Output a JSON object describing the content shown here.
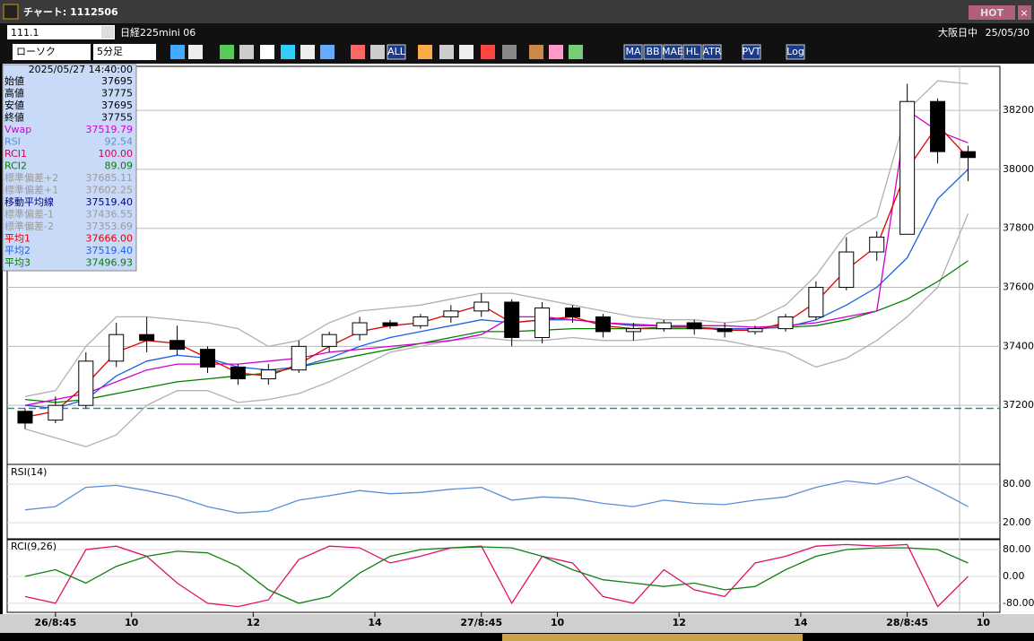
{
  "window": {
    "title": "チャート: 1112506",
    "hot": "HOT"
  },
  "toolbar": {
    "symbol_code": "111.1",
    "symbol_name": "日経225mini 06",
    "session": "大阪日中",
    "date": "25/05/30",
    "chart_type": "ローソク",
    "interval": "5分足",
    "buttons": [
      "ALL",
      "MA",
      "BB",
      "MAE",
      "HL",
      "ATR",
      "PVT",
      "Log"
    ]
  },
  "info_panel": {
    "datetime": "2025/05/27  14:40:00",
    "rows": [
      {
        "label": "始値",
        "value": "37695",
        "color": "#000000"
      },
      {
        "label": "高値",
        "value": "37775",
        "color": "#000000"
      },
      {
        "label": "安値",
        "value": "37695",
        "color": "#000000"
      },
      {
        "label": "終値",
        "value": "37755",
        "color": "#000000"
      },
      {
        "label": "Vwap",
        "value": "37519.79",
        "color": "#d000d0"
      },
      {
        "label": "RSI",
        "value": "92.54",
        "color": "#5b8fd5"
      },
      {
        "label": "RCI1",
        "value": "100.00",
        "color": "#d0005a"
      },
      {
        "label": "RCI2",
        "value": "89.09",
        "color": "#008000"
      },
      {
        "label": "標準偏差+2",
        "value": "37685.11",
        "color": "#9a9a9a"
      },
      {
        "label": "標準偏差+1",
        "value": "37602.25",
        "color": "#9a9a9a"
      },
      {
        "label": "移動平均線",
        "value": "37519.40",
        "color": "#000080"
      },
      {
        "label": "標準偏差-1",
        "value": "37436.55",
        "color": "#9a9a9a"
      },
      {
        "label": "標準偏差-2",
        "value": "37353.69",
        "color": "#9a9a9a"
      },
      {
        "label": "平均1",
        "value": "37666.00",
        "color": "#e00000"
      },
      {
        "label": "平均2",
        "value": "37519.40",
        "color": "#2060e0"
      },
      {
        "label": "平均3",
        "value": "37496.93",
        "color": "#008000"
      }
    ]
  },
  "chart_data": [
    {
      "type": "candlestick",
      "x": [
        0,
        1,
        2,
        3,
        4,
        5,
        6,
        7,
        8,
        9,
        10,
        11,
        12,
        13,
        14,
        15,
        16,
        17,
        18,
        19,
        20,
        21,
        22,
        23,
        24,
        25,
        26,
        27,
        28,
        29,
        30,
        31
      ],
      "xlim": [
        -0.5,
        31.9
      ],
      "xticks": [
        {
          "value": 1,
          "label": "26/8:45"
        },
        {
          "value": 3.5,
          "label": "10"
        },
        {
          "value": 7.5,
          "label": "12"
        },
        {
          "value": 11.5,
          "label": "14"
        },
        {
          "value": 15,
          "label": "27/8:45"
        },
        {
          "value": 17.5,
          "label": "10"
        },
        {
          "value": 21.5,
          "label": "12"
        },
        {
          "value": 25.5,
          "label": "14"
        },
        {
          "value": 29,
          "label": "28/8:45"
        },
        {
          "value": 31.5,
          "label": "10"
        }
      ],
      "open": [
        37180,
        37150,
        37200,
        37350,
        37440,
        37420,
        37390,
        37330,
        37290,
        37320,
        37400,
        37440,
        37480,
        37470,
        37500,
        37520,
        37550,
        37430,
        37530,
        37500,
        37450,
        37460,
        37480,
        37460,
        37450,
        37460,
        37500,
        37600,
        37720,
        37780,
        38230,
        38060
      ],
      "high": [
        37190,
        37230,
        37380,
        37480,
        37500,
        37470,
        37400,
        37340,
        37340,
        37420,
        37450,
        37500,
        37490,
        37510,
        37540,
        37580,
        37560,
        37550,
        37540,
        37510,
        37480,
        37490,
        37490,
        37480,
        37470,
        37510,
        37620,
        37770,
        37790,
        38290,
        38240,
        38080
      ],
      "low": [
        37120,
        37140,
        37190,
        37330,
        37380,
        37370,
        37310,
        37270,
        37270,
        37310,
        37380,
        37420,
        37460,
        37460,
        37480,
        37500,
        37400,
        37410,
        37480,
        37430,
        37420,
        37450,
        37440,
        37430,
        37440,
        37450,
        37490,
        37590,
        37690,
        37780,
        38020,
        37960
      ],
      "close": [
        37140,
        37200,
        37350,
        37440,
        37420,
        37390,
        37330,
        37290,
        37320,
        37400,
        37440,
        37480,
        37470,
        37500,
        37520,
        37550,
        37430,
        37530,
        37500,
        37450,
        37460,
        37480,
        37460,
        37450,
        37460,
        37500,
        37600,
        37720,
        37770,
        38230,
        38060,
        38040
      ],
      "lines": [
        {
          "name": "標準偏差+2",
          "color": "#b0b0b0",
          "values": [
            37230,
            37250,
            37400,
            37500,
            37500,
            37490,
            37480,
            37460,
            37400,
            37420,
            37480,
            37520,
            37530,
            37540,
            37560,
            37580,
            37580,
            37560,
            37540,
            37520,
            37500,
            37490,
            37490,
            37480,
            37490,
            37540,
            37640,
            37780,
            37840,
            38200,
            38300,
            38290
          ]
        },
        {
          "name": "標準偏差-2",
          "color": "#b0b0b0",
          "values": [
            37120,
            37090,
            37060,
            37100,
            37200,
            37250,
            37250,
            37210,
            37220,
            37240,
            37280,
            37330,
            37380,
            37400,
            37420,
            37430,
            37420,
            37420,
            37430,
            37420,
            37420,
            37430,
            37430,
            37420,
            37400,
            37380,
            37330,
            37360,
            37420,
            37500,
            37600,
            37850
          ]
        },
        {
          "name": "平均3",
          "color": "#008000",
          "values": [
            37220,
            37210,
            37220,
            37240,
            37260,
            37280,
            37290,
            37300,
            37310,
            37330,
            37350,
            37370,
            37390,
            37410,
            37430,
            37450,
            37450,
            37455,
            37460,
            37460,
            37460,
            37460,
            37460,
            37460,
            37460,
            37465,
            37470,
            37490,
            37520,
            37560,
            37620,
            37690
          ]
        },
        {
          "name": "平均2",
          "color": "#2060e0",
          "values": [
            37200,
            37190,
            37220,
            37300,
            37350,
            37370,
            37360,
            37330,
            37320,
            37330,
            37360,
            37400,
            37430,
            37450,
            37470,
            37490,
            37480,
            37490,
            37490,
            37480,
            37470,
            37470,
            37465,
            37460,
            37460,
            37465,
            37490,
            37540,
            37600,
            37700,
            37900,
            38000
          ]
        },
        {
          "name": "Vwap",
          "color": "#d000d0",
          "values": [
            37200,
            37220,
            37240,
            37280,
            37320,
            37340,
            37340,
            37340,
            37350,
            37360,
            37380,
            37390,
            37400,
            37410,
            37420,
            37440,
            37500,
            37500,
            37490,
            37480,
            37475,
            37470,
            37470,
            37470,
            37465,
            37470,
            37480,
            37500,
            37520,
            38200,
            38130,
            38090
          ]
        },
        {
          "name": "平均1",
          "color": "#e00000",
          "values": [
            37160,
            37180,
            37270,
            37380,
            37420,
            37410,
            37360,
            37310,
            37300,
            37340,
            37400,
            37450,
            37470,
            37480,
            37510,
            37540,
            37480,
            37490,
            37500,
            37470,
            37460,
            37465,
            37465,
            37455,
            37455,
            37480,
            37550,
            37660,
            37740,
            38000,
            38150,
            38040
          ]
        }
      ],
      "hline": 37190,
      "hline_color": "#2a8a9a",
      "ylim": [
        37000,
        38340
      ],
      "yticks": [
        37200,
        37400,
        37600,
        37800,
        38000,
        38200
      ]
    },
    {
      "type": "line",
      "label": "RSI(14)",
      "ylim": [
        -6.5,
        106.5
      ],
      "yticks": [
        {
          "value": 80,
          "label": "80.00"
        },
        {
          "value": 20,
          "label": "20.00"
        }
      ],
      "series": [
        {
          "name": "RSI",
          "color": "#5b8fd5",
          "values": [
            40,
            45,
            75,
            78,
            70,
            60,
            45,
            35,
            38,
            55,
            62,
            70,
            65,
            67,
            72,
            75,
            55,
            60,
            58,
            50,
            45,
            55,
            50,
            48,
            55,
            60,
            75,
            85,
            80,
            92,
            70,
            45
          ]
        }
      ]
    },
    {
      "type": "line",
      "label": "RCI(9,26)",
      "ylim": [
        -107,
        104
      ],
      "yticks": [
        {
          "value": 80,
          "label": "80.00"
        },
        {
          "value": 0,
          "label": "0.00"
        },
        {
          "value": -80,
          "label": "-80.00"
        }
      ],
      "series": [
        {
          "name": "RCI1",
          "color": "#e0106a",
          "values": [
            -60,
            -80,
            80,
            90,
            60,
            -20,
            -80,
            -90,
            -70,
            50,
            90,
            85,
            40,
            60,
            85,
            90,
            -80,
            60,
            40,
            -60,
            -80,
            20,
            -40,
            -60,
            40,
            60,
            90,
            95,
            90,
            95,
            -90,
            0
          ]
        },
        {
          "name": "RCI2",
          "color": "#108010",
          "values": [
            0,
            20,
            -20,
            30,
            60,
            75,
            70,
            30,
            -40,
            -80,
            -60,
            10,
            60,
            80,
            85,
            88,
            85,
            60,
            20,
            -10,
            -20,
            -30,
            -20,
            -40,
            -30,
            20,
            60,
            80,
            85,
            85,
            80,
            40
          ]
        }
      ]
    }
  ]
}
